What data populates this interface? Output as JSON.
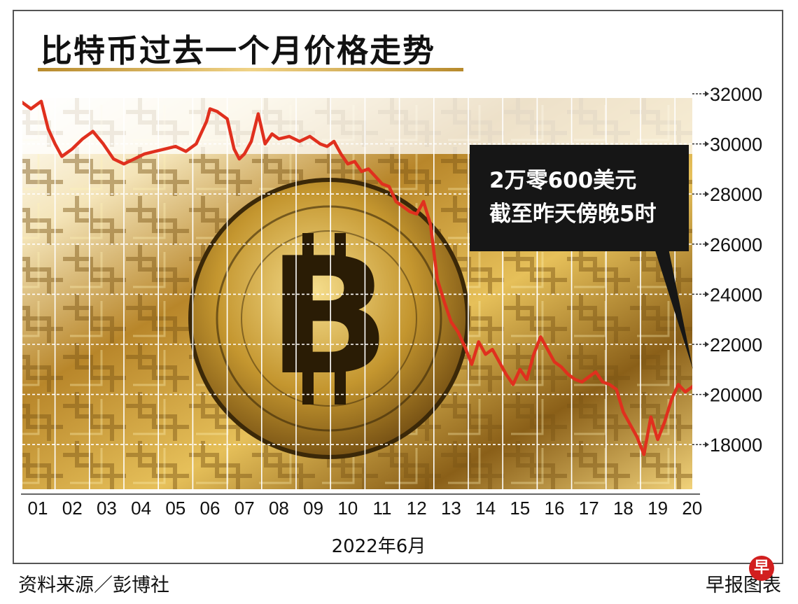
{
  "title": "比特币过去一个月价格走势",
  "callout": {
    "line1": "2万零600美元",
    "line2": "截至昨天傍晚5时"
  },
  "source_note": "资料来源／彭博社",
  "credit": "早报图表",
  "logo_text": "早",
  "colors": {
    "line": "#e0301e",
    "grid": "#ffffff",
    "accent": "#c9a24a",
    "callout_bg": "#161616"
  },
  "chart_data": {
    "type": "line",
    "title": "比特币过去一个月价格走势",
    "xlabel": "2022年6月",
    "ylabel": "",
    "ylim": [
      16500,
      32500
    ],
    "x_range": [
      0.5,
      20.3
    ],
    "y_ticks": [
      18000,
      20000,
      22000,
      24000,
      26000,
      28000,
      30000,
      32000
    ],
    "y_tick_labels": [
      "18000",
      "20000",
      "22000",
      "24000",
      "26000",
      "28000",
      "30000",
      "32000"
    ],
    "x_ticks": [
      "01",
      "02",
      "03",
      "04",
      "05",
      "06",
      "07",
      "08",
      "09",
      "10",
      "11",
      "12",
      "13",
      "14",
      "15",
      "16",
      "17",
      "18",
      "19",
      "20"
    ],
    "grid": true,
    "series": [
      {
        "name": "",
        "x": [
          0.5,
          0.8,
          1.1,
          1.3,
          1.5,
          1.7,
          2.0,
          2.3,
          2.6,
          2.9,
          3.2,
          3.5,
          3.8,
          4.1,
          4.4,
          4.7,
          5.0,
          5.3,
          5.6,
          5.9,
          6.0,
          6.2,
          6.5,
          6.7,
          6.85,
          7.0,
          7.2,
          7.4,
          7.6,
          7.8,
          8.0,
          8.3,
          8.6,
          8.9,
          9.2,
          9.4,
          9.6,
          9.8,
          10.0,
          10.2,
          10.4,
          10.6,
          10.8,
          11.0,
          11.2,
          11.4,
          11.6,
          11.8,
          12.0,
          12.2,
          12.4,
          12.6,
          12.8,
          13.0,
          13.2,
          13.4,
          13.6,
          13.8,
          14.0,
          14.2,
          14.4,
          14.6,
          14.8,
          15.0,
          15.2,
          15.4,
          15.6,
          15.8,
          16.0,
          16.2,
          16.4,
          16.6,
          16.8,
          17.0,
          17.2,
          17.4,
          17.6,
          17.8,
          18.0,
          18.2,
          18.4,
          18.6,
          18.8,
          19.0,
          19.2,
          19.4,
          19.6,
          19.8,
          20.0,
          20.2
        ],
        "y": [
          31700,
          31400,
          31700,
          30600,
          30000,
          29500,
          29800,
          30200,
          30500,
          30000,
          29400,
          29200,
          29400,
          29600,
          29700,
          29800,
          29900,
          29700,
          30000,
          30900,
          31400,
          31300,
          31000,
          29800,
          29400,
          29600,
          30100,
          31200,
          30000,
          30400,
          30200,
          30300,
          30100,
          30300,
          30000,
          29900,
          30100,
          29600,
          29200,
          29300,
          28900,
          29000,
          28700,
          28400,
          28300,
          27700,
          27500,
          27300,
          27200,
          27700,
          26800,
          24600,
          23700,
          22900,
          22500,
          21900,
          21200,
          22100,
          21600,
          21800,
          21300,
          20800,
          20400,
          21000,
          20600,
          21600,
          22300,
          21800,
          21300,
          21100,
          20800,
          20600,
          20500,
          20700,
          20900,
          20500,
          20400,
          20200,
          19300,
          18800,
          18300,
          17600,
          19100,
          18200,
          18900,
          19800,
          20400,
          20100,
          20300,
          20600
        ]
      }
    ]
  }
}
